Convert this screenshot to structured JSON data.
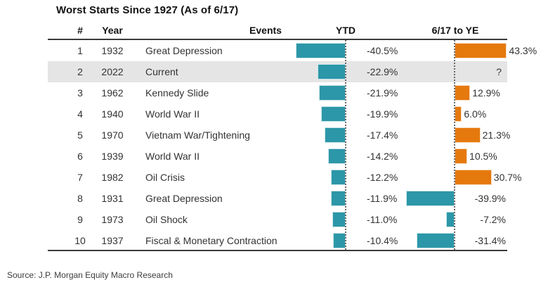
{
  "title": "Worst Starts Since 1927 (As of 6/17)",
  "source": "Source: J.P. Morgan Equity Macro Research",
  "columns": {
    "num": "#",
    "year": "Year",
    "events": "Events",
    "ytd": "YTD",
    "ye": "6/17 to YE"
  },
  "colors": {
    "teal": "#2C97A8",
    "orange": "#E5790E",
    "highlight_row": "#E5E5E5",
    "rule": "#3B3B3B"
  },
  "chart_data": {
    "type": "bar",
    "title": "Worst Starts Since 1927 (As of 6/17)",
    "columns": [
      "#",
      "Year",
      "Events",
      "YTD",
      "6/17 to YE"
    ],
    "orientation": "horizontal",
    "ytd_axis_note": "YTD bars are negative returns drawn leftward from a dotted zero baseline (teal)",
    "ye_axis_note": "6/17-to-YE bars drawn from dotted zero baseline: positive = orange rightward, negative = teal leftward; 2022 value unknown (?)",
    "rows": [
      {
        "num": "1",
        "year": "1932",
        "event": "Great Depression",
        "ytd": -40.5,
        "ytd_label": "-40.5%",
        "ye": 43.3,
        "ye_label": "43.3%",
        "highlight": false
      },
      {
        "num": "2",
        "year": "2022",
        "event": "Current",
        "ytd": -22.9,
        "ytd_label": "-22.9%",
        "ye": null,
        "ye_label": "?",
        "highlight": true
      },
      {
        "num": "3",
        "year": "1962",
        "event": "Kennedy Slide",
        "ytd": -21.9,
        "ytd_label": "-21.9%",
        "ye": 12.9,
        "ye_label": "12.9%",
        "highlight": false
      },
      {
        "num": "4",
        "year": "1940",
        "event": "World War II",
        "ytd": -19.9,
        "ytd_label": "-19.9%",
        "ye": 6.0,
        "ye_label": "6.0%",
        "highlight": false
      },
      {
        "num": "5",
        "year": "1970",
        "event": "Vietnam War/Tightening",
        "ytd": -17.4,
        "ytd_label": "-17.4%",
        "ye": 21.3,
        "ye_label": "21.3%",
        "highlight": false
      },
      {
        "num": "6",
        "year": "1939",
        "event": "World War II",
        "ytd": -14.2,
        "ytd_label": "-14.2%",
        "ye": 10.5,
        "ye_label": "10.5%",
        "highlight": false
      },
      {
        "num": "7",
        "year": "1982",
        "event": "Oil Crisis",
        "ytd": -12.2,
        "ytd_label": "-12.2%",
        "ye": 30.7,
        "ye_label": "30.7%",
        "highlight": false
      },
      {
        "num": "8",
        "year": "1931",
        "event": "Great Depression",
        "ytd": -11.9,
        "ytd_label": "-11.9%",
        "ye": -39.9,
        "ye_label": "-39.9%",
        "highlight": false
      },
      {
        "num": "9",
        "year": "1973",
        "event": "Oil Shock",
        "ytd": -11.0,
        "ytd_label": "-11.0%",
        "ye": -7.2,
        "ye_label": "-7.2%",
        "highlight": false
      },
      {
        "num": "10",
        "year": "1937",
        "event": "Fiscal & Monetary Contraction",
        "ytd": -10.4,
        "ytd_label": "-10.4%",
        "ye": -31.4,
        "ye_label": "-31.4%",
        "highlight": false
      }
    ]
  }
}
